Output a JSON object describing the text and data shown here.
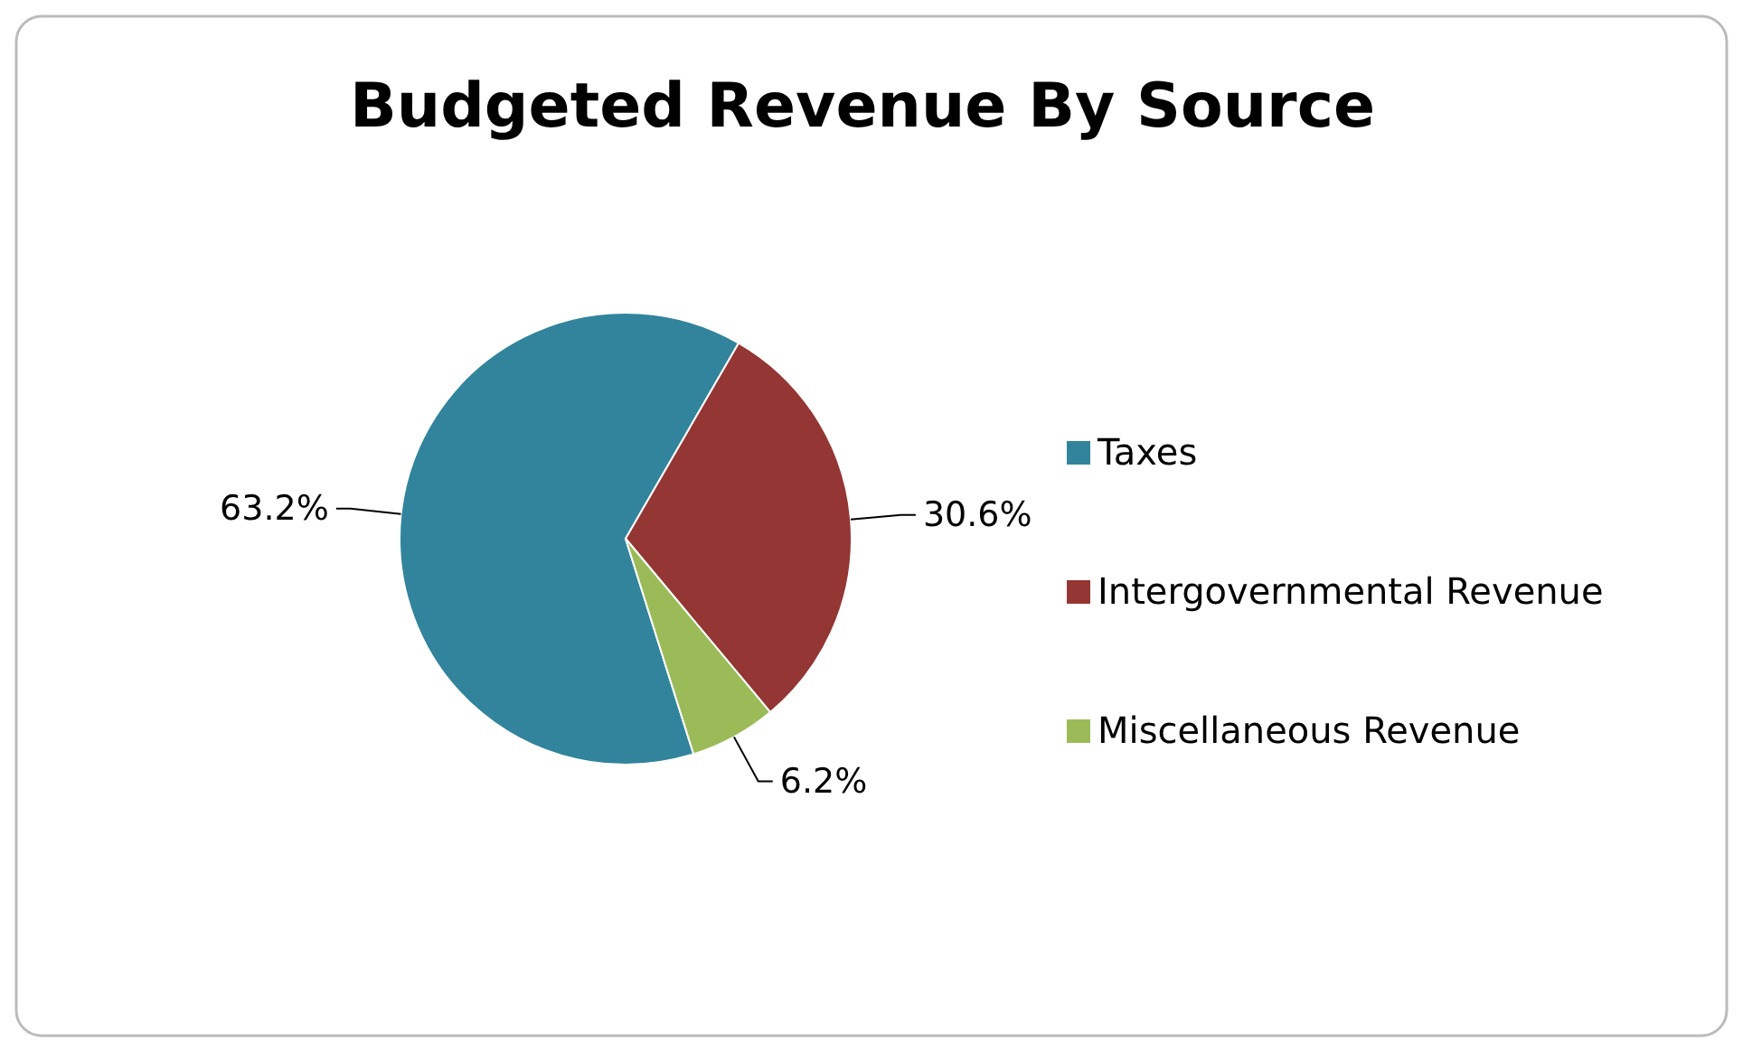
{
  "chart_data": {
    "type": "pie",
    "title": "Budgeted Revenue By Source",
    "categories": [
      "Taxes",
      "Intergovernmental Revenue",
      "Miscellaneous Revenue"
    ],
    "values": [
      63.2,
      30.6,
      6.2
    ],
    "value_labels": [
      "63.2%",
      "30.6%",
      "6.2%"
    ],
    "colors": [
      "#31849b",
      "#943634",
      "#9bbb59"
    ],
    "legend": "right"
  }
}
